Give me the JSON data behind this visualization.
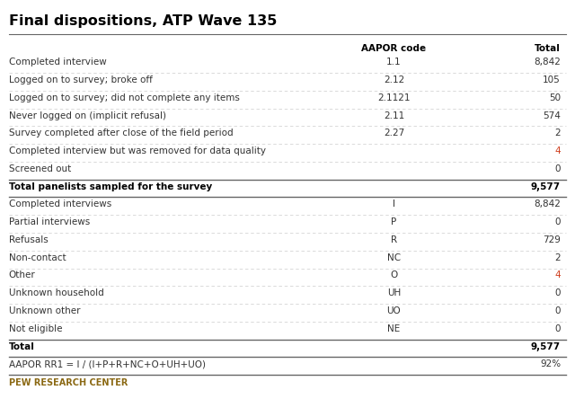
{
  "title": "Final dispositions, ATP Wave 135",
  "header_col1": "AAPOR code",
  "header_col2": "Total",
  "rows": [
    {
      "label": "Completed interview",
      "code": "1.1",
      "total": "8,842",
      "bold": false,
      "color_total": false,
      "sep_before": false,
      "sep_after": false
    },
    {
      "label": "Logged on to survey; broke off",
      "code": "2.12",
      "total": "105",
      "bold": false,
      "color_total": false,
      "sep_before": false,
      "sep_after": false
    },
    {
      "label": "Logged on to survey; did not complete any items",
      "code": "2.1121",
      "total": "50",
      "bold": false,
      "color_total": false,
      "sep_before": false,
      "sep_after": false
    },
    {
      "label": "Never logged on (implicit refusal)",
      "code": "2.11",
      "total": "574",
      "bold": false,
      "color_total": false,
      "sep_before": false,
      "sep_after": false
    },
    {
      "label": "Survey completed after close of the field period",
      "code": "2.27",
      "total": "2",
      "bold": false,
      "color_total": false,
      "sep_before": false,
      "sep_after": false
    },
    {
      "label": "Completed interview but was removed for data quality",
      "code": "",
      "total": "4",
      "bold": false,
      "color_total": true,
      "sep_before": false,
      "sep_after": false
    },
    {
      "label": "Screened out",
      "code": "",
      "total": "0",
      "bold": false,
      "color_total": false,
      "sep_before": false,
      "sep_after": false
    },
    {
      "label": "Total panelists sampled for the survey",
      "code": "",
      "total": "9,577",
      "bold": true,
      "color_total": false,
      "sep_before": true,
      "sep_after": true
    },
    {
      "label": "Completed interviews",
      "code": "I",
      "total": "8,842",
      "bold": false,
      "color_total": false,
      "sep_before": false,
      "sep_after": false
    },
    {
      "label": "Partial interviews",
      "code": "P",
      "total": "0",
      "bold": false,
      "color_total": false,
      "sep_before": false,
      "sep_after": false
    },
    {
      "label": "Refusals",
      "code": "R",
      "total": "729",
      "bold": false,
      "color_total": false,
      "sep_before": false,
      "sep_after": false
    },
    {
      "label": "Non-contact",
      "code": "NC",
      "total": "2",
      "bold": false,
      "color_total": false,
      "sep_before": false,
      "sep_after": false
    },
    {
      "label": "Other",
      "code": "O",
      "total": "4",
      "bold": false,
      "color_total": true,
      "sep_before": false,
      "sep_after": false
    },
    {
      "label": "Unknown household",
      "code": "UH",
      "total": "0",
      "bold": false,
      "color_total": false,
      "sep_before": false,
      "sep_after": false
    },
    {
      "label": "Unknown other",
      "code": "UO",
      "total": "0",
      "bold": false,
      "color_total": false,
      "sep_before": false,
      "sep_after": false
    },
    {
      "label": "Not eligible",
      "code": "NE",
      "total": "0",
      "bold": false,
      "color_total": false,
      "sep_before": false,
      "sep_after": false
    },
    {
      "label": "Total",
      "code": "",
      "total": "9,577",
      "bold": true,
      "color_total": false,
      "sep_before": true,
      "sep_after": true
    },
    {
      "label": "AAPOR RR1 = I / (I+P+R+NC+O+UH+UO)",
      "code": "",
      "total": "92%",
      "bold": false,
      "color_total": false,
      "sep_before": false,
      "sep_after": true
    }
  ],
  "footer": "PEW RESEARCH CENTER",
  "bg_color": "#ffffff",
  "title_color": "#000000",
  "text_color": "#333333",
  "bold_color": "#000000",
  "highlight_color": "#d04020",
  "dash_color": "#cccccc",
  "solid_color": "#666666",
  "footer_color": "#8b6914"
}
